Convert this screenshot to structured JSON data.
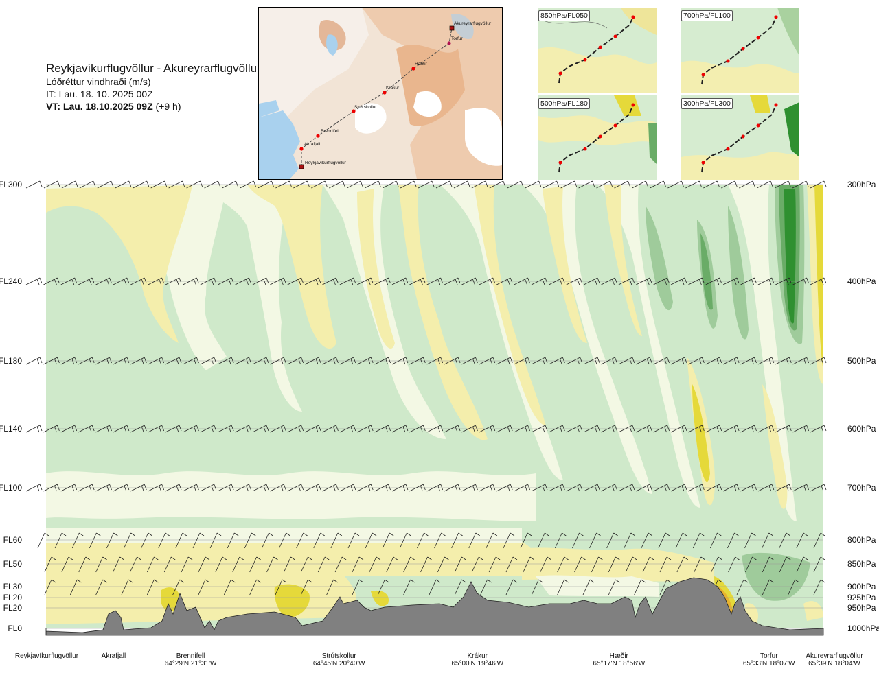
{
  "header": {
    "route": "Reykjavíkurflugvöllur - Akureyrarflugvöllur",
    "variable": "Lóðréttur vindhraði (m/s)",
    "it": "IT: Lau. 18. 10. 2025 00Z",
    "vt_bold": "VT: Lau. 18.10.2025 09Z",
    "vt_offset": "(+9 h)"
  },
  "map": {
    "waypoints": [
      {
        "name": "Reykjavíkurflugvöllur"
      },
      {
        "name": "Akrafjall"
      },
      {
        "name": "Brennifell"
      },
      {
        "name": "Strútskollur"
      },
      {
        "name": "Krákur"
      },
      {
        "name": "Hæðir"
      },
      {
        "name": "Torfur"
      },
      {
        "name": "Akureyrarflugvöllur"
      }
    ]
  },
  "mini_maps": [
    {
      "label": "850hPa/FL050"
    },
    {
      "label": "700hPa/FL100"
    },
    {
      "label": "500hPa/FL180"
    },
    {
      "label": "300hPa/FL300"
    }
  ],
  "colors": {
    "neutral_green": "#cfe9ca",
    "pale": "#f3f8e4",
    "yellow_light": "#f4eeac",
    "yellow_mid": "#ece37a",
    "yellow_strong": "#e5d93a",
    "orange": "#e7b22f",
    "green_mid": "#9fcb9b",
    "green_dark": "#6aac67",
    "green_strong": "#2f9030",
    "terrain": "#808080"
  },
  "chart_data": {
    "type": "heatmap",
    "title": "Lóðréttur vindhraði (m/s)",
    "xlabel": "",
    "ylabel": "",
    "levels": [
      {
        "fl": "FL300",
        "hpa": "300hPa",
        "pressure": 300
      },
      {
        "fl": "FL240",
        "hpa": "400hPa",
        "pressure": 400
      },
      {
        "fl": "FL180",
        "hpa": "500hPa",
        "pressure": 500
      },
      {
        "fl": "FL140",
        "hpa": "600hPa",
        "pressure": 600
      },
      {
        "fl": "FL100",
        "hpa": "700hPa",
        "pressure": 700
      },
      {
        "fl": "FL60",
        "hpa": "800hPa",
        "pressure": 800
      },
      {
        "fl": "FL50",
        "hpa": "850hPa",
        "pressure": 850
      },
      {
        "fl": "FL30",
        "hpa": "900hPa",
        "pressure": 900
      },
      {
        "fl": "FL20",
        "hpa": "925hPa",
        "pressure": 925
      },
      {
        "fl": "FL20",
        "hpa": "950hPa",
        "pressure": 950
      },
      {
        "fl": "FL0",
        "hpa": "1000hPa",
        "pressure": 1000
      }
    ],
    "waypoints": [
      {
        "name": "Reykjavíkurflugvöllur",
        "coord": "",
        "dist": 0
      },
      {
        "name": "Akrafjall",
        "coord": "",
        "dist": 0.087
      },
      {
        "name": "Brennifell",
        "coord": "64°29'N 21°31'W",
        "dist": 0.186
      },
      {
        "name": "Strútskollur",
        "coord": "64°45'N 20°40'W",
        "dist": 0.377
      },
      {
        "name": "Krákur",
        "coord": "65°00'N 19°46'W",
        "dist": 0.555
      },
      {
        "name": "Hæðir",
        "coord": "65°17'N 18°56'W",
        "dist": 0.737
      },
      {
        "name": "Torfur",
        "coord": "65°33'N 18°07'W",
        "dist": 0.93
      },
      {
        "name": "Akureyrarflugvöllur",
        "coord": "65°39'N 18°04'W",
        "dist": 1.0
      }
    ]
  }
}
